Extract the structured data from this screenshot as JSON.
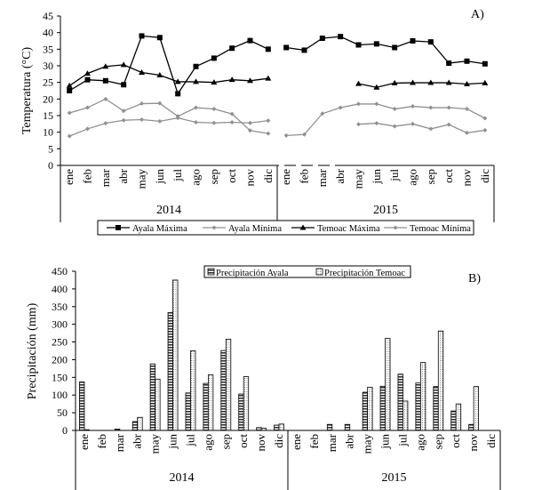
{
  "chart_data": [
    {
      "type": "line",
      "panel_label": "A)",
      "ylabel": "Temperatura (°C)",
      "ylim": [
        0,
        45
      ],
      "yticks": [
        0,
        5,
        10,
        15,
        20,
        25,
        30,
        35,
        40,
        45
      ],
      "years": [
        "2014",
        "2015"
      ],
      "months": [
        "ene",
        "feb",
        "mar",
        "abr",
        "may",
        "jun",
        "jul",
        "ago",
        "sep",
        "oct",
        "nov",
        "dic"
      ],
      "legend_position": "bottom",
      "series": [
        {
          "name": "Ayala Máxima",
          "marker": "square",
          "color": "#000000",
          "values": [
            22.5,
            25.8,
            25.5,
            24.3,
            39,
            38.5,
            21.6,
            29.8,
            32.3,
            35.3,
            37.6,
            35,
            35.5,
            34.7,
            38.3,
            38.8,
            36.3,
            36.6,
            35.5,
            37.5,
            37.2,
            30.8,
            31.4,
            30.6
          ]
        },
        {
          "name": "Ayala Mínima",
          "marker": "diamond",
          "color": "#909090",
          "values": [
            15.8,
            17.4,
            20,
            16.4,
            18.6,
            18.7,
            14.8,
            17.4,
            17,
            15.5,
            10.5,
            9.6,
            9,
            9.3,
            15.6,
            17.4,
            18.5,
            18.5,
            17,
            17.8,
            17.4,
            17.4,
            17,
            14.2
          ]
        },
        {
          "name": "Temoac Máxima",
          "marker": "triangle",
          "color": "#000000",
          "values": [
            24,
            27.7,
            29.8,
            30.3,
            28,
            27.2,
            25.2,
            25.2,
            25,
            25.8,
            25.5,
            26.2,
            null,
            null,
            null,
            null,
            24.6,
            23.5,
            24.8,
            24.9,
            24.9,
            24.9,
            24.5,
            24.8
          ]
        },
        {
          "name": "Temoac Mínima",
          "marker": "diamond",
          "color": "#909090",
          "values": [
            8.8,
            11,
            12.7,
            13.6,
            13.8,
            13.3,
            14.3,
            13,
            12.8,
            13,
            12.8,
            13.5,
            null,
            null,
            null,
            null,
            12.4,
            12.7,
            11.8,
            12.5,
            11,
            12.3,
            9.8,
            10.6
          ]
        }
      ]
    },
    {
      "type": "bar",
      "panel_label": "B)",
      "ylabel": "Precipitación (mm)",
      "ylim": [
        0,
        450
      ],
      "yticks": [
        0,
        50,
        100,
        150,
        200,
        250,
        300,
        350,
        400,
        450
      ],
      "years": [
        "2014",
        "2015"
      ],
      "months": [
        "ene",
        "feb",
        "mar",
        "abr",
        "may",
        "jun",
        "jul",
        "ago",
        "sep",
        "oct",
        "nov",
        "dic"
      ],
      "legend_position": "top",
      "series": [
        {
          "name": "Precipitación Ayala",
          "pattern": "horizontal-stripes",
          "values": [
            137,
            0,
            4,
            25,
            188,
            333,
            106,
            133,
            226,
            103,
            8,
            15,
            0,
            0,
            17,
            17,
            108,
            125,
            159,
            134,
            124,
            55,
            17,
            0
          ]
        },
        {
          "name": "Precipitación Temoac",
          "pattern": "dots",
          "values": [
            2,
            0,
            0,
            37,
            145,
            425,
            225,
            157,
            258,
            152,
            6,
            18,
            0,
            0,
            0,
            0,
            122,
            260,
            83,
            192,
            281,
            75,
            124,
            0
          ]
        }
      ]
    }
  ]
}
